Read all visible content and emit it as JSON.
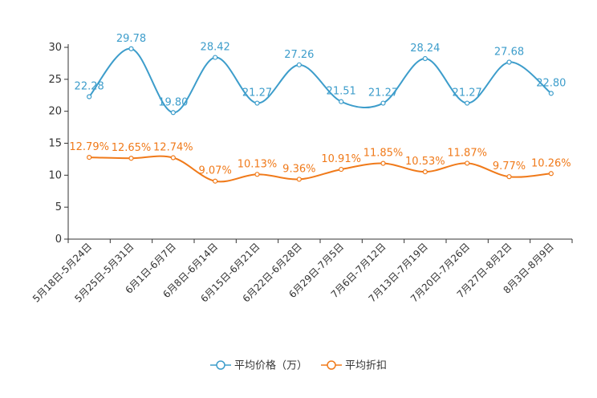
{
  "chart_data": {
    "type": "line",
    "categories": [
      "5月18日-5月24日",
      "5月25日-5月31日",
      "6月1日-6月7日",
      "6月8日-6月14日",
      "6月15日-6月21日",
      "6月22日-6月28日",
      "6月29日-7月5日",
      "7月6日-7月12日",
      "7月13日-7月19日",
      "7月20日-7月26日",
      "7月27日-8月2日",
      "8月3日-8月9日"
    ],
    "series": [
      {
        "name": "平均价格（万）",
        "color": "#3d9dcb",
        "values": [
          22.28,
          29.78,
          19.8,
          28.42,
          21.27,
          27.26,
          21.51,
          21.27,
          28.24,
          21.27,
          27.68,
          22.8
        ],
        "labels": [
          "22.28",
          "29.78",
          "19.80",
          "28.42",
          "21.27",
          "27.26",
          "21.51",
          "21.27",
          "28.24",
          "21.27",
          "27.68",
          "22.80"
        ]
      },
      {
        "name": "平均折扣",
        "color": "#f07a1a",
        "values": [
          12.79,
          12.65,
          12.74,
          9.07,
          10.13,
          9.36,
          10.91,
          11.85,
          10.53,
          11.87,
          9.77,
          10.26
        ],
        "labels": [
          "12.79%",
          "12.65%",
          "12.74%",
          "9.07%",
          "10.13%",
          "9.36%",
          "10.91%",
          "11.85%",
          "10.53%",
          "11.87%",
          "9.77%",
          "10.26%"
        ]
      }
    ],
    "yticks": [
      "0",
      "5",
      "10",
      "15",
      "20",
      "25",
      "30"
    ],
    "ylim": [
      0,
      30
    ],
    "title": "",
    "xlabel": "",
    "ylabel": "",
    "legend_position": "bottom-center"
  }
}
